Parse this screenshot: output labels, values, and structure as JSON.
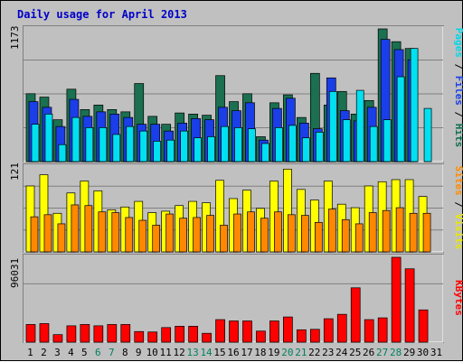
{
  "chart_data": [
    {
      "type": "bar",
      "title": "Daily usage for April 2013",
      "ylabel_parts": [
        {
          "text": "Pages",
          "color": "#00d8e8"
        },
        {
          "text": " / ",
          "color": "#000000"
        },
        {
          "text": "Files",
          "color": "#1a3ee8"
        },
        {
          "text": " / ",
          "color": "#000000"
        },
        {
          "text": "Hits",
          "color": "#0f7050"
        }
      ],
      "ymax_label": "1173",
      "ylim": [
        0,
        1173
      ],
      "categories": [
        "1",
        "2",
        "3",
        "4",
        "5",
        "6",
        "7",
        "8",
        "9",
        "10",
        "11",
        "12",
        "13",
        "14",
        "15",
        "16",
        "17",
        "18",
        "19",
        "20",
        "21",
        "22",
        "23",
        "24",
        "25",
        "26",
        "27",
        "28",
        "29",
        "30",
        "31"
      ],
      "weekend_days": [
        "6",
        "7",
        "13",
        "14",
        "20",
        "21",
        "27",
        "28"
      ],
      "series": [
        {
          "name": "Hits",
          "color": "#1a7050",
          "values": [
            600,
            570,
            370,
            640,
            460,
            500,
            460,
            440,
            690,
            400,
            330,
            430,
            420,
            410,
            760,
            530,
            600,
            220,
            520,
            590,
            390,
            780,
            500,
            620,
            420,
            540,
            1173,
            1060,
            1000,
            null,
            null
          ]
        },
        {
          "name": "Files",
          "color": "#1a3ee8",
          "values": [
            530,
            480,
            310,
            550,
            400,
            440,
            420,
            390,
            330,
            330,
            270,
            340,
            380,
            370,
            480,
            450,
            520,
            190,
            470,
            560,
            340,
            290,
            740,
            450,
            360,
            480,
            1080,
            990,
            900,
            null,
            null
          ]
        },
        {
          "name": "Pages",
          "color": "#00e0f0",
          "values": [
            330,
            420,
            150,
            390,
            300,
            300,
            240,
            310,
            270,
            180,
            190,
            270,
            210,
            220,
            310,
            300,
            290,
            160,
            300,
            320,
            210,
            260,
            620,
            370,
            630,
            310,
            370,
            750,
            1000,
            470,
            null
          ]
        }
      ]
    },
    {
      "type": "bar",
      "ylabel_parts": [
        {
          "text": "Sites",
          "color": "#ff8c00"
        },
        {
          "text": " / ",
          "color": "#000000"
        },
        {
          "text": "Visits",
          "color": "#e8e800"
        }
      ],
      "ymax_label": "121",
      "ylim": [
        0,
        121
      ],
      "categories": [
        "1",
        "2",
        "3",
        "4",
        "5",
        "6",
        "7",
        "8",
        "9",
        "10",
        "11",
        "12",
        "13",
        "14",
        "15",
        "16",
        "17",
        "18",
        "19",
        "20",
        "21",
        "22",
        "23",
        "24",
        "25",
        "26",
        "27",
        "28",
        "29",
        "30",
        "31"
      ],
      "series": [
        {
          "name": "Visits",
          "color": "#ffff00",
          "values": [
            94,
            110,
            55,
            84,
            101,
            87,
            60,
            64,
            72,
            56,
            58,
            66,
            72,
            70,
            102,
            76,
            88,
            62,
            101,
            118,
            89,
            74,
            101,
            68,
            63,
            94,
            100,
            103,
            103,
            79,
            null
          ]
        },
        {
          "name": "Sites",
          "color": "#ff8800",
          "values": [
            50,
            53,
            40,
            67,
            66,
            57,
            56,
            49,
            45,
            38,
            54,
            48,
            49,
            52,
            38,
            54,
            57,
            48,
            57,
            53,
            52,
            42,
            61,
            46,
            40,
            56,
            59,
            63,
            55,
            55,
            null
          ]
        }
      ]
    },
    {
      "type": "bar",
      "ylabel_parts": [
        {
          "text": "KBytes",
          "color": "#ff0000"
        }
      ],
      "ymax_label": "96031",
      "ylim": [
        0,
        96031
      ],
      "categories": [
        "1",
        "2",
        "3",
        "4",
        "5",
        "6",
        "7",
        "8",
        "9",
        "10",
        "11",
        "12",
        "13",
        "14",
        "15",
        "16",
        "17",
        "18",
        "19",
        "20",
        "21",
        "22",
        "23",
        "24",
        "25",
        "26",
        "27",
        "28",
        "29",
        "30",
        "31"
      ],
      "series": [
        {
          "name": "KBytes",
          "color": "#ff0000",
          "values": [
            20000,
            21000,
            8500,
            18500,
            20000,
            18500,
            20000,
            20000,
            12000,
            11500,
            16500,
            18000,
            18000,
            10000,
            25500,
            24000,
            24000,
            12500,
            24000,
            28500,
            14000,
            14500,
            26500,
            31500,
            61500,
            25500,
            27500,
            96031,
            83000,
            36500,
            null
          ]
        }
      ]
    }
  ]
}
